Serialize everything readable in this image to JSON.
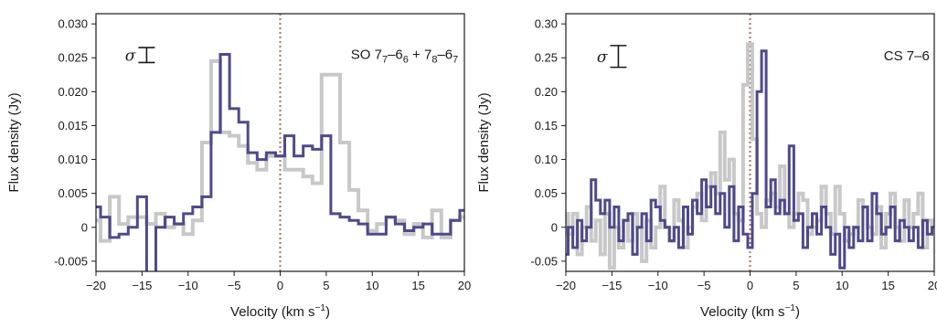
{
  "chart_data": [
    {
      "type": "line",
      "step": true,
      "xlabel_main": "Velocity (km s",
      "xlabel_sup": "−1",
      "xlabel_tail": ")",
      "ylabel": "Flux density (Jy)",
      "xlim": [
        -20,
        20
      ],
      "ylim": [
        -0.0065,
        0.0315
      ],
      "xticks": [
        -20,
        -15,
        -10,
        -5,
        0,
        5,
        10,
        15,
        20
      ],
      "xtick_labels": [
        "−20",
        "−15",
        "−10",
        "−5",
        "0",
        "5",
        "10",
        "15",
        "20"
      ],
      "yticks": [
        -0.005,
        0,
        0.005,
        0.01,
        0.015,
        0.02,
        0.025,
        0.03
      ],
      "ytick_labels": [
        "-0.005",
        "0",
        "0.005",
        "0.010",
        "0.015",
        "0.020",
        "0.025",
        "0.030"
      ],
      "annotation": {
        "parts": [
          {
            "t": "SO 7",
            "s": "n"
          },
          {
            "t": "7",
            "s": "sub"
          },
          {
            "t": "–6",
            "s": "n"
          },
          {
            "t": "6",
            "s": "sub"
          },
          {
            "t": " + 7",
            "s": "n"
          },
          {
            "t": "8",
            "s": "sub"
          },
          {
            "t": "–6",
            "s": "n"
          },
          {
            "t": "7",
            "s": "sub"
          }
        ],
        "x": 13.5,
        "y": 0.0255
      },
      "sigma": {
        "symbol": "σ",
        "x": -14.5,
        "y": 0.0254,
        "half": 0.0011
      },
      "vline": {
        "x": 0,
        "color": "#a87f72"
      },
      "series": [
        {
          "color": "#c8c8c8",
          "width": 4,
          "x": [
            -20,
            -19,
            -18,
            -17,
            -16,
            -15,
            -14,
            -13,
            -12,
            -11,
            -10,
            -9,
            -8,
            -7,
            -6,
            -5,
            -4,
            -3,
            -2,
            -1,
            0,
            1,
            2,
            3,
            4,
            5,
            6,
            7,
            8,
            9,
            10,
            11,
            12,
            13,
            14,
            15,
            16,
            17,
            18,
            19,
            20
          ],
          "y": [
            0.001,
            -0.002,
            0.0045,
            0.0005,
            0.0015,
            0.0015,
            0.0005,
            0.002,
            0.0,
            0.0005,
            -0.001,
            0.001,
            0.0125,
            0.0245,
            0.014,
            0.0135,
            0.012,
            0.0095,
            0.0085,
            0.0105,
            0.0105,
            0.0085,
            0.0085,
            0.0075,
            0.0065,
            0.0225,
            0.0225,
            0.0125,
            0.0055,
            0.0025,
            -0.0005,
            0.0005,
            0.0015,
            0.001,
            -0.001,
            0.0005,
            -0.0015,
            0.0025,
            -0.0015,
            0.001,
            0.0015
          ]
        },
        {
          "color": "#4e4a8a",
          "width": 3,
          "x": [
            -20,
            -19,
            -18,
            -17,
            -16,
            -15,
            -14,
            -13,
            -12,
            -11,
            -10,
            -9,
            -8,
            -7,
            -6,
            -5,
            -4,
            -3,
            -2,
            -1,
            0,
            1,
            2,
            3,
            4,
            5,
            6,
            7,
            8,
            9,
            10,
            11,
            12,
            13,
            14,
            15,
            16,
            17,
            18,
            19,
            20
          ],
          "y": [
            0.003,
            0.0015,
            -0.0015,
            -0.001,
            0.0,
            0.0045,
            -0.0075,
            0.0,
            0.0015,
            0.0005,
            0.002,
            0.003,
            0.0045,
            0.014,
            0.0255,
            0.0175,
            0.0155,
            0.011,
            0.01,
            0.011,
            0.0105,
            0.0135,
            0.0105,
            0.012,
            0.0115,
            0.0135,
            0.002,
            0.0015,
            0.001,
            0.0005,
            -0.001,
            -0.001,
            0.0015,
            0.0005,
            -0.0005,
            0.0,
            0.0005,
            -0.001,
            -0.001,
            0.001,
            0.0025
          ]
        }
      ]
    },
    {
      "type": "line",
      "step": true,
      "xlabel_main": "Velocity (km s",
      "xlabel_sup": "−1",
      "xlabel_tail": ")",
      "ylabel": "Flux density (Jy)",
      "xlim": [
        -20,
        20
      ],
      "ylim": [
        -0.065,
        0.315
      ],
      "xticks": [
        -20,
        -15,
        -10,
        -5,
        0,
        5,
        10,
        15,
        20
      ],
      "xtick_labels": [
        "−20",
        "−15",
        "−10",
        "−5",
        "0",
        "5",
        "10",
        "15",
        "20"
      ],
      "yticks": [
        -0.05,
        0,
        0.05,
        0.1,
        0.15,
        0.2,
        0.25,
        0.3
      ],
      "ytick_labels": [
        "-0.05",
        "0",
        "0.05",
        "0.10",
        "0.15",
        "0.20",
        "0.25",
        "0.30"
      ],
      "annotation": {
        "parts": [
          {
            "t": "CS 7–6",
            "s": "n"
          }
        ],
        "x": 17.0,
        "y": 0.253
      },
      "sigma": {
        "symbol": "σ",
        "x": -14.3,
        "y": 0.252,
        "half": 0.016
      },
      "vline": {
        "x": 0,
        "color": "#a87f72"
      },
      "series": [
        {
          "color": "#c8c8c8",
          "width": 4,
          "x": [
            -20,
            -19.5,
            -19,
            -18.5,
            -18,
            -17.5,
            -17,
            -16.5,
            -16,
            -15.5,
            -15,
            -14.5,
            -14,
            -13.5,
            -13,
            -12.5,
            -12,
            -11.5,
            -11,
            -10.5,
            -10,
            -9.5,
            -9,
            -8.5,
            -8,
            -7.5,
            -7,
            -6.5,
            -6,
            -5.5,
            -5,
            -4.5,
            -4,
            -3.5,
            -3,
            -2.5,
            -2,
            -1.5,
            -1,
            -0.5,
            0,
            0.5,
            1,
            1.5,
            2,
            2.5,
            3,
            3.5,
            4,
            4.5,
            5,
            5.5,
            6,
            6.5,
            7,
            7.5,
            8,
            8.5,
            9,
            9.5,
            10,
            10.5,
            11,
            11.5,
            12,
            12.5,
            13,
            13.5,
            14,
            14.5,
            15,
            15.5,
            16,
            16.5,
            17,
            17.5,
            18,
            18.5,
            19,
            19.5,
            20
          ],
          "y": [
            0.02,
            -0.01,
            0.02,
            -0.04,
            0.0,
            0.03,
            -0.02,
            0.01,
            -0.04,
            0.02,
            -0.06,
            0.0,
            -0.03,
            0.01,
            -0.02,
            0.02,
            0.0,
            -0.05,
            0.01,
            -0.03,
            0.0,
            0.06,
            0.0,
            -0.02,
            0.04,
            0.01,
            -0.03,
            0.0,
            0.03,
            0.05,
            0.01,
            0.06,
            0.08,
            0.05,
            0.14,
            0.07,
            0.1,
            0.02,
            0.01,
            0.21,
            0.27,
            0.13,
            0.02,
            0.0,
            0.04,
            0.05,
            0.03,
            0.09,
            0.02,
            0.0,
            0.02,
            0.05,
            0.04,
            -0.01,
            0.0,
            0.01,
            0.06,
            0.02,
            -0.01,
            0.06,
            0.02,
            -0.02,
            -0.01,
            0.0,
            0.04,
            0.03,
            0.0,
            -0.01,
            0.03,
            -0.03,
            0.02,
            0.05,
            0.0,
            -0.02,
            0.04,
            0.0,
            0.02,
            0.05,
            -0.03,
            0.01,
            0.0
          ]
        },
        {
          "color": "#4e4a8a",
          "width": 3,
          "x": [
            -20,
            -19.5,
            -19,
            -18.5,
            -18,
            -17.5,
            -17,
            -16.5,
            -16,
            -15.5,
            -15,
            -14.5,
            -14,
            -13.5,
            -13,
            -12.5,
            -12,
            -11.5,
            -11,
            -10.5,
            -10,
            -9.5,
            -9,
            -8.5,
            -8,
            -7.5,
            -7,
            -6.5,
            -6,
            -5.5,
            -5,
            -4.5,
            -4,
            -3.5,
            -3,
            -2.5,
            -2,
            -1.5,
            -1,
            -0.5,
            0,
            0.5,
            1,
            1.5,
            2,
            2.5,
            3,
            3.5,
            4,
            4.5,
            5,
            5.5,
            6,
            6.5,
            7,
            7.5,
            8,
            8.5,
            9,
            9.5,
            10,
            10.5,
            11,
            11.5,
            12,
            12.5,
            13,
            13.5,
            14,
            14.5,
            15,
            15.5,
            16,
            16.5,
            17,
            17.5,
            18,
            18.5,
            19,
            19.5,
            20
          ],
          "y": [
            -0.04,
            0.0,
            -0.03,
            0.01,
            -0.02,
            0.0,
            0.07,
            0.04,
            0.02,
            0.04,
            0.0,
            0.03,
            -0.02,
            0.01,
            0.02,
            -0.04,
            0.0,
            0.02,
            -0.02,
            0.04,
            0.03,
            0.01,
            0.0,
            -0.02,
            0.0,
            -0.03,
            0.03,
            -0.01,
            0.04,
            0.02,
            0.07,
            0.03,
            0.06,
            0.02,
            0.05,
            0.0,
            0.06,
            -0.02,
            0.03,
            -0.01,
            -0.03,
            0.05,
            0.2,
            0.26,
            0.03,
            0.07,
            0.02,
            0.04,
            0.02,
            0.12,
            0.01,
            0.02,
            -0.03,
            0.0,
            0.02,
            -0.01,
            0.03,
            0.0,
            -0.04,
            -0.01,
            -0.06,
            0.0,
            -0.03,
            0.0,
            -0.02,
            0.03,
            -0.02,
            0.05,
            0.02,
            -0.01,
            0.0,
            0.03,
            -0.02,
            0.01,
            0.0,
            -0.02,
            0.0,
            -0.03,
            0.01,
            -0.01,
            0.0
          ]
        }
      ]
    }
  ]
}
